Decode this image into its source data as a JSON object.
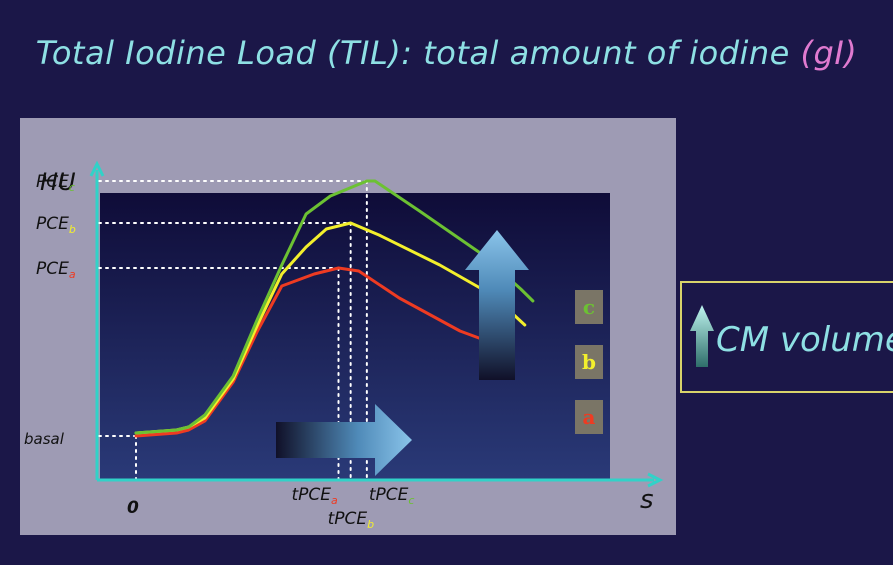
{
  "slide": {
    "title_main": "Total Iodine Load (TIL): total amount of  iodine ",
    "title_unit": "(gI)"
  },
  "callout": {
    "text": "CM volume",
    "icon": "up-arrow-icon"
  },
  "colors": {
    "background": "#1b1748",
    "panel": "#9e9bb4",
    "plot_bg": "#16133f",
    "title": "#8ee0e4",
    "unit": "#e07ad0",
    "series_a": "#ee3b22",
    "series_b": "#f3ef2c",
    "series_c": "#6cc133",
    "axis": "#31d2c8"
  },
  "chart_data": {
    "type": "line",
    "ylabel": "HU",
    "xlabel": "s",
    "x_origin_label": "0",
    "y_levels": [
      {
        "key": "basal",
        "label": "basal",
        "sub": "",
        "value": 10,
        "color": "#ffffff"
      },
      {
        "key": "a",
        "label": "PCE",
        "sub": "a",
        "value": 66,
        "color": "#ee3b22"
      },
      {
        "key": "b",
        "label": "PCE",
        "sub": "b",
        "value": 81,
        "color": "#f3ef2c"
      },
      {
        "key": "c",
        "label": "PCE",
        "sub": "c",
        "value": 95,
        "color": "#6cc133"
      }
    ],
    "x_peaks": [
      {
        "key": "a",
        "label": "tPCE",
        "sub": "a",
        "value": 50,
        "color": "#ee3b22"
      },
      {
        "key": "b",
        "label": "tPCE",
        "sub": "b",
        "value": 53,
        "color": "#f3ef2c"
      },
      {
        "key": "c",
        "label": "tPCE",
        "sub": "c",
        "value": 57,
        "color": "#6cc133"
      }
    ],
    "xlim": [
      -8,
      100
    ],
    "ylim": [
      0,
      100
    ],
    "series": [
      {
        "name": "a",
        "color": "#ee3b22",
        "points": [
          [
            0,
            10
          ],
          [
            10,
            11
          ],
          [
            13,
            12
          ],
          [
            17,
            15
          ],
          [
            24,
            28
          ],
          [
            30,
            45
          ],
          [
            36,
            60
          ],
          [
            44,
            64
          ],
          [
            50,
            66
          ],
          [
            55,
            65
          ],
          [
            65,
            56
          ],
          [
            80,
            45
          ],
          [
            88,
            41
          ],
          [
            93,
            33
          ]
        ]
      },
      {
        "name": "b",
        "color": "#f3ef2c",
        "points": [
          [
            0,
            11
          ],
          [
            10,
            12
          ],
          [
            13,
            13
          ],
          [
            17,
            16
          ],
          [
            24,
            29
          ],
          [
            30,
            47
          ],
          [
            36,
            64
          ],
          [
            42,
            73
          ],
          [
            47,
            79
          ],
          [
            53,
            81
          ],
          [
            60,
            77
          ],
          [
            75,
            67
          ],
          [
            88,
            57
          ],
          [
            96,
            47
          ]
        ]
      },
      {
        "name": "c",
        "color": "#6cc133",
        "points": [
          [
            0,
            11
          ],
          [
            10,
            12
          ],
          [
            13,
            13
          ],
          [
            17,
            17
          ],
          [
            24,
            30
          ],
          [
            30,
            49
          ],
          [
            36,
            67
          ],
          [
            42,
            84
          ],
          [
            48,
            90
          ],
          [
            57,
            95
          ],
          [
            59,
            95
          ],
          [
            70,
            85
          ],
          [
            85,
            71
          ],
          [
            95,
            59
          ],
          [
            98,
            55
          ]
        ]
      }
    ],
    "series_badges": [
      {
        "name": "c",
        "label": "c",
        "color": "#6cc133"
      },
      {
        "name": "b",
        "label": "b",
        "color": "#f3ef2c"
      },
      {
        "name": "a",
        "label": "a",
        "color": "#ee3b22"
      }
    ]
  }
}
